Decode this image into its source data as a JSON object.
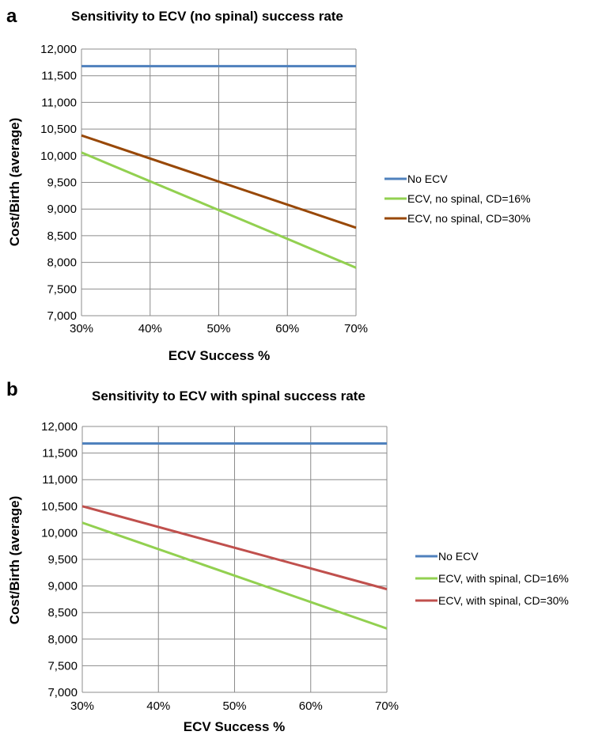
{
  "chart_data": [
    {
      "panel": "a",
      "type": "line",
      "title": "Sensitivity to ECV (no spinal) success rate",
      "xlabel": "ECV Success %",
      "ylabel": "Cost/Birth (average)",
      "x": [
        30,
        70
      ],
      "x_tick_labels": [
        "30%",
        "40%",
        "50%",
        "60%",
        "70%"
      ],
      "y_tick_labels": [
        "7,000",
        "7,500",
        "8,000",
        "8,500",
        "9,000",
        "9,500",
        "10,000",
        "10,500",
        "11,000",
        "11,500",
        "12,000"
      ],
      "xlim": [
        30,
        70
      ],
      "ylim": [
        7000,
        12000
      ],
      "grid": true,
      "legend_position": "right",
      "series": [
        {
          "name": "No ECV",
          "color": "#4f81bd",
          "values": [
            11680,
            11680
          ]
        },
        {
          "name": "ECV, no spinal, CD=16%",
          "color": "#92d050",
          "values": [
            10060,
            7900
          ]
        },
        {
          "name": "ECV, no spinal, CD=30%",
          "color": "#984807",
          "values": [
            10380,
            8650
          ]
        }
      ]
    },
    {
      "panel": "b",
      "type": "line",
      "title": "Sensitivity to ECV with spinal success rate",
      "xlabel": "ECV Success %",
      "ylabel": "Cost/Birth (average)",
      "x": [
        30,
        70
      ],
      "x_tick_labels": [
        "30%",
        "40%",
        "50%",
        "60%",
        "70%"
      ],
      "y_tick_labels": [
        "7,000",
        "7,500",
        "8,000",
        "8,500",
        "9,000",
        "9,500",
        "10,000",
        "10,500",
        "11,000",
        "11,500",
        "12,000"
      ],
      "xlim": [
        30,
        70
      ],
      "ylim": [
        7000,
        12000
      ],
      "grid": true,
      "legend_position": "right",
      "series": [
        {
          "name": "No ECV",
          "color": "#4f81bd",
          "values": [
            11680,
            11680
          ]
        },
        {
          "name": "ECV, with spinal, CD=16%",
          "color": "#92d050",
          "values": [
            10190,
            8200
          ]
        },
        {
          "name": "ECV, with spinal, CD=30%",
          "color": "#c0504d",
          "values": [
            10500,
            8940
          ]
        }
      ]
    }
  ]
}
